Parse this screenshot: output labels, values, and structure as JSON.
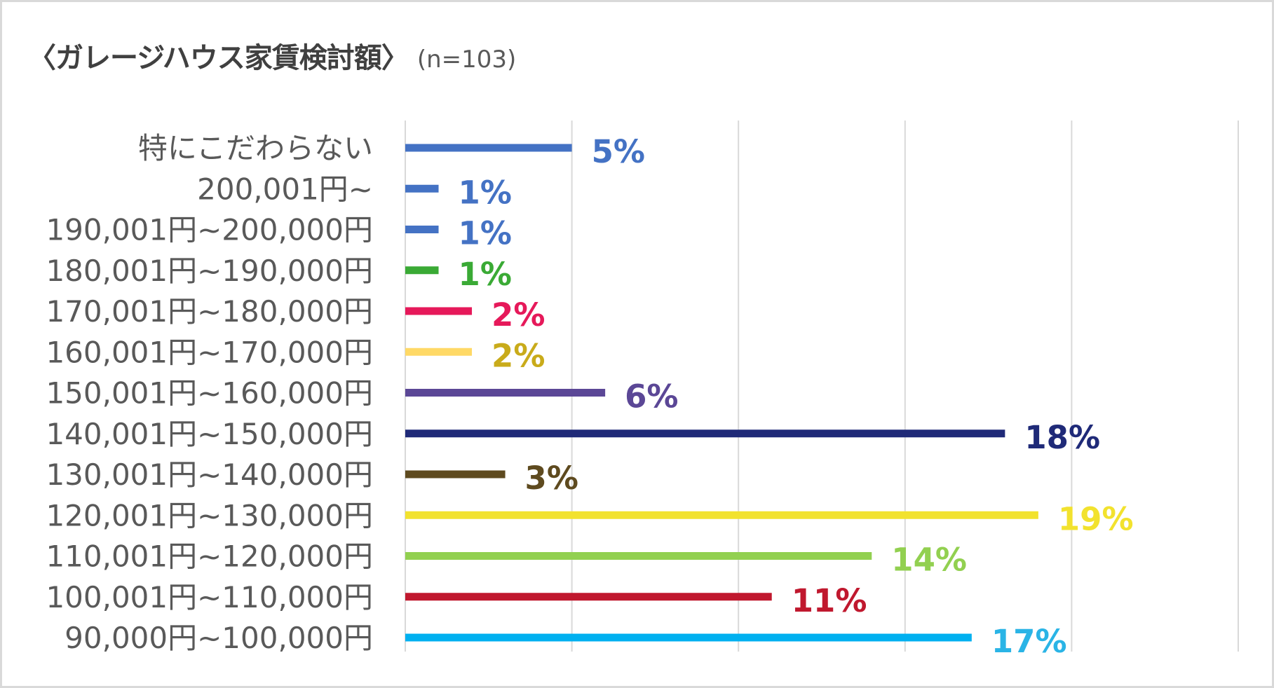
{
  "title": "〈ガレージハウス家賃検討額〉",
  "subtitle": "(n=103)",
  "chart_data": {
    "type": "bar",
    "orientation": "horizontal",
    "categories": [
      "特にこだわらない",
      "200,001円~",
      "190,001円~200,000円",
      "180,001円~190,000円",
      "170,001円~180,000円",
      "160,001円~170,000円",
      "150,001円~160,000円",
      "140,001円~150,000円",
      "130,001円~140,000円",
      "120,001円~130,000円",
      "110,001円~120,000円",
      "100,001円~110,000円",
      "90,000円~100,000円"
    ],
    "values": [
      5,
      1,
      1,
      1,
      2,
      2,
      6,
      18,
      3,
      19,
      14,
      11,
      17
    ],
    "data_labels": [
      "5%",
      "1%",
      "1%",
      "1%",
      "2%",
      "2%",
      "6%",
      "18%",
      "3%",
      "19%",
      "14%",
      "11%",
      "17%"
    ],
    "bar_colors": [
      "#4472c4",
      "#4472c4",
      "#4472c4",
      "#3aaa35",
      "#e6195a",
      "#ffd966",
      "#5b4796",
      "#1f2a78",
      "#5e4a1f",
      "#f2e22e",
      "#92d050",
      "#c0182e",
      "#00b0f0"
    ],
    "label_colors": [
      "#4472c4",
      "#4472c4",
      "#4472c4",
      "#3aaa35",
      "#e6195a",
      "#c9ab1a",
      "#5b4796",
      "#1f2a78",
      "#5e4a1f",
      "#f2e22e",
      "#92d050",
      "#c0182e",
      "#2ab4e6"
    ],
    "xlim": [
      0,
      25
    ],
    "grid": true,
    "gridline_step": 5,
    "xlabel": "",
    "ylabel": ""
  }
}
